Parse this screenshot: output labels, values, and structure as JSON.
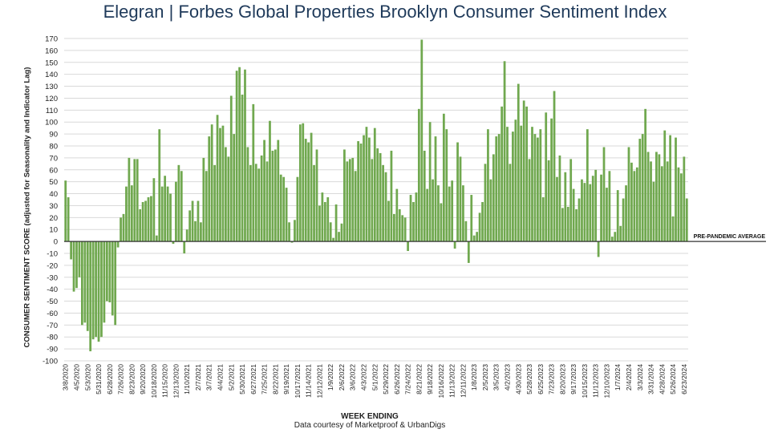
{
  "title_brand": "Elegran | Forbes Global Properties",
  "title_rest": "Brooklyn Consumer Sentiment Index",
  "colors": {
    "bar": "#70a84f",
    "title": "#1f3a5a",
    "grid": "#d9d9d9",
    "baseline": "#333333"
  },
  "chart_data": {
    "type": "bar",
    "xlabel": "WEEK ENDING",
    "ylabel": "CONSUMER SENTIMENT SCORE (adjusted for Seasonality and Indicator Lag)",
    "credit": "Data courtesy of Marketproof & UrbanDigs",
    "annotation": "PRE-PANDEMIC AVERAGE",
    "ylim": [
      -100,
      170
    ],
    "yticks": [
      170,
      160,
      150,
      140,
      130,
      120,
      110,
      100,
      90,
      80,
      70,
      60,
      50,
      40,
      30,
      20,
      10,
      0,
      -10,
      -20,
      -30,
      -40,
      -50,
      -60,
      -70,
      -80,
      -90,
      -100
    ],
    "grid": true,
    "tick_labels": [
      "3/8/2020",
      "4/5/2020",
      "5/3/2020",
      "5/31/2020",
      "6/28/2020",
      "7/26/2020",
      "8/23/2020",
      "9/20/2020",
      "10/18/2020",
      "11/15/2020",
      "12/13/2020",
      "1/10/2021",
      "2/7/2021",
      "3/7/2021",
      "4/4/2021",
      "5/2/2021",
      "5/30/2021",
      "6/27/2021",
      "7/25/2021",
      "8/22/2021",
      "9/19/2021",
      "10/17/2021",
      "11/14/2021",
      "12/12/2021",
      "1/9/2022",
      "2/6/2022",
      "3/6/2022",
      "4/3/2022",
      "5/1/2022",
      "5/29/2022",
      "6/26/2022",
      "7/24/2022",
      "8/21/2022",
      "9/18/2022",
      "10/16/2022",
      "11/13/2022",
      "12/11/2022",
      "1/8/2023",
      "2/5/2023",
      "3/5/2023",
      "4/2/2023",
      "4/30/2023",
      "5/28/2023",
      "6/25/2023",
      "7/23/2023",
      "8/20/2023",
      "9/17/2023",
      "10/15/2023",
      "11/12/2023",
      "12/10/2023",
      "1/7/2024",
      "2/4/2024",
      "3/3/2024",
      "3/31/2024",
      "4/28/2024",
      "5/26/2024",
      "6/23/2024"
    ],
    "values": [
      51,
      37,
      -15,
      -42,
      -39,
      -30,
      -70,
      -68,
      -75,
      -92,
      -82,
      -80,
      -84,
      -80,
      -68,
      -50,
      -51,
      -62,
      -70,
      -5,
      20,
      23,
      46,
      70,
      47,
      69,
      69,
      27,
      33,
      34,
      37,
      38,
      53,
      5,
      94,
      46,
      55,
      46,
      40,
      -2,
      50,
      64,
      59,
      -10,
      10,
      26,
      34,
      17,
      34,
      16,
      70,
      59,
      88,
      98,
      64,
      106,
      95,
      97,
      79,
      71,
      122,
      90,
      143,
      146,
      123,
      144,
      79,
      64,
      115,
      65,
      61,
      72,
      85,
      67,
      101,
      76,
      77,
      85,
      56,
      54,
      45,
      16,
      -1,
      18,
      54,
      98,
      99,
      86,
      83,
      91,
      64,
      77,
      30,
      41,
      33,
      37,
      16,
      3,
      31,
      8,
      15,
      77,
      67,
      69,
      70,
      59,
      84,
      82,
      89,
      96,
      87,
      69,
      95,
      78,
      74,
      64,
      58,
      34,
      76,
      23,
      44,
      27,
      22,
      20,
      -8,
      39,
      33,
      41,
      111,
      169,
      76,
      44,
      100,
      52,
      88,
      47,
      32,
      107,
      94,
      46,
      51,
      -6,
      83,
      71,
      47,
      17,
      -18,
      39,
      5,
      8,
      24,
      33,
      65,
      94,
      52,
      73,
      88,
      90,
      113,
      151,
      96,
      65,
      92,
      102,
      132,
      97,
      118,
      113,
      69,
      96,
      90,
      87,
      94,
      37,
      108,
      68,
      103,
      126,
      54,
      72,
      28,
      58,
      29,
      69,
      44,
      27,
      36,
      52,
      49,
      94,
      48,
      55,
      60,
      -13,
      56,
      79,
      45,
      59,
      4,
      8,
      43,
      13,
      36,
      47,
      79,
      66,
      59,
      62,
      86,
      90,
      111,
      75,
      67,
      50,
      75,
      73,
      63,
      93,
      67,
      89,
      21,
      87,
      62,
      57,
      71,
      36
    ]
  }
}
